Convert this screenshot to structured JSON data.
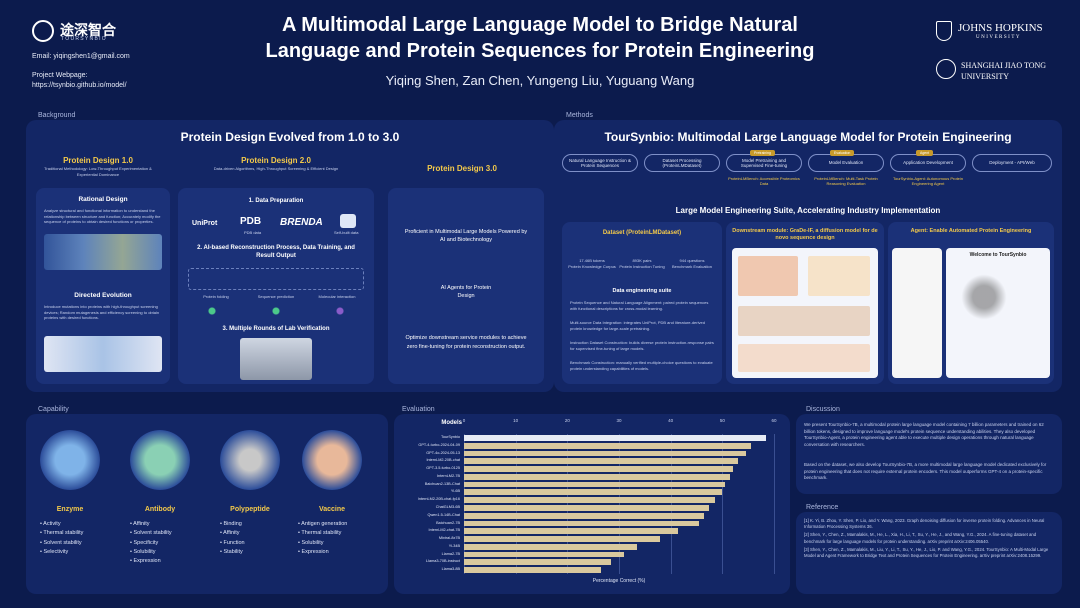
{
  "header": {
    "logo_text": "途深智合",
    "logo_sub": "TOURSYNBIO",
    "email": "Email: yiqingshen1@gmail.com",
    "webpage_label": "Project Webpage:",
    "webpage_url": "https://tsynbio.github.io/model/",
    "title_line1": "A Multimodal Large Language Model to Bridge Natural",
    "title_line2": "Language and Protein Sequences for Protein Engineering",
    "authors": "Yiqing Shen, Zan Chen, Yungeng Liu, Yuguang Wang",
    "jhu_line1": "JOHNS HOPKINS",
    "jhu_line2": "UNIVERSITY",
    "sjtu_line1": "SHANGHAI JIAO TONG",
    "sjtu_line2": "UNIVERSITY"
  },
  "background": {
    "section_label": "Background",
    "title": "Protein Design Evolved from 1.0 to 3.0",
    "pd1": {
      "title": "Protein Design 1.0",
      "subtitle": "Traditional Methodology: Low-Throughput Experimentation & Experiential Dominance",
      "rational_title": "Rational Design",
      "rational_text": "Analyze structural and functional information to understand the relationship between structure and function; Accurately modify the sequence of proteins to obtain desired functions or properties.",
      "directed_title": "Directed Evolution",
      "directed_text": "Introduce mutations into proteins with high-throughput screening devices; Random mutagenesis and efficiency screening to obtain proteins with desired functions."
    },
    "pd2": {
      "title": "Protein Design 2.0",
      "subtitle": "Data-driven Algorithms, High-Throughput Screening & Efficient Design",
      "step1": "1. Data Preparation",
      "db1": "UniProt",
      "db2": "PDB",
      "db3": "BRENDA",
      "db2_sub": "PDB data",
      "db4_sub": "Self-built data",
      "step2": "2. AI-based Reconstruction Process, Data Training, and Result Output",
      "out1": "Protein folding",
      "out2": "Sequence prediction",
      "out3": "Molecular interaction",
      "step3": "3. Multiple Rounds of Lab Verification"
    },
    "pd3": {
      "title": "Protein Design 3.0",
      "text1": "Proficient in Multimodal Large Models Powered by AI and Biotechnology",
      "text2": "AI Agents for Protein Design",
      "text3": "Optimize downstream service modules to achieve zero fine-tuning for protein reconstruction output."
    }
  },
  "methods": {
    "section_label": "Methods",
    "title": "TourSynbio: Multimodal Large Language Model for Protein Engineering",
    "pills": [
      "Natural Language Instruction & Protein Sequences",
      "Dataset Processing (ProteinLMDataset)",
      "Model Pretraining and Supervised Fine-tuning",
      "Model Evaluation",
      "Application Development",
      "Deployment - API/Web"
    ],
    "tags": [
      "Pretraining",
      "Evaluation",
      "Agent"
    ],
    "notes": [
      "ProteinLMBench: Accessible Proteomics Data",
      "ProteinLMBench: Multi-Task Protein Reasoning Evaluation",
      "TourSynbio-Agent: Autonomous Protein Engineering Agent"
    ],
    "suite_title": "Large Model Engineering Suite, Accelerating Industry Implementation",
    "dataset_title": "Dataset (ProteinLMDataset)",
    "dataset_stats": [
      "Protein Knowledge Corpus",
      "Protein Instruction Tuning",
      "Benchmark Evaluation"
    ],
    "dataset_values": [
      "17.46B tokens",
      "893K pairs",
      "944 questions"
    ],
    "suite_heading": "Data engineering suite",
    "suite_points": [
      "Protein Sequence and Natural Language Alignment: paired protein sequences with functional descriptions for cross-modal learning.",
      "Multi-source Data Integration: integrates UniProt, PDB and literature-derived protein knowledge for large-scale pretraining.",
      "Instruction Dataset Construction: builds diverse protein instruction-response pairs for supervised fine-tuning of large models.",
      "Benchmark Construction: manually verified multiple-choice questions to evaluate protein understanding capabilities of models."
    ],
    "downstream_title": "Downstream module: GraDe-IF, a diffusion model for de novo sequence design",
    "agent_title": "Agent: Enable Automated Protein Engineering",
    "agent_welcome": "Welcome to TourSynbio"
  },
  "capability": {
    "section_label": "Capability",
    "items": [
      {
        "title": "Enzyme",
        "points": [
          "Activity",
          "Thermal stability",
          "Solvent stability",
          "Selectivity"
        ]
      },
      {
        "title": "Antibody",
        "points": [
          "Affinity",
          "Solvent stability",
          "Specificity",
          "Solubility",
          "Expression"
        ]
      },
      {
        "title": "Polypeptide",
        "points": [
          "Binding",
          "Affinity",
          "Function",
          "Stability"
        ]
      },
      {
        "title": "Vaccine",
        "points": [
          "Antigen generation",
          "Thermal stability",
          "Solubility",
          "Expression"
        ]
      }
    ]
  },
  "evaluation": {
    "section_label": "Evaluation"
  },
  "chart_data": {
    "type": "bar",
    "orientation": "horizontal",
    "title": "Models",
    "xlabel": "Percentage Correct (%)",
    "ylabel": "",
    "xlim": [
      0,
      60
    ],
    "xticks": [
      0,
      10,
      20,
      30,
      40,
      50,
      60
    ],
    "grid": true,
    "categories": [
      "TourSynbio",
      "GPT-4-turbo-2024-04-09",
      "GPT-4o-2024-05-13",
      "InternLM2-20B-chat",
      "GPT-3.5-turbo-0125",
      "InternLM2-7B",
      "Baichuan2-13B-Chat",
      "Yi-6B",
      "InternLM2-20B-chat-fp16",
      "ChatGLM3-6B",
      "Qwen1.5-14B-Chat",
      "Baichuan2-7B",
      "InternLM2-chat-7B",
      "Mixtral-8x7B",
      "Yi-34B",
      "Llama2-7B",
      "Llama3-70B-instruct",
      "Llama3-8B"
    ],
    "values": [
      58.5,
      55.5,
      54.5,
      53.0,
      52.0,
      51.5,
      50.5,
      50.0,
      48.5,
      47.5,
      46.5,
      45.5,
      41.5,
      38.0,
      33.5,
      31.0,
      28.5,
      26.5
    ],
    "bar_colors": [
      "#e6ebf5",
      "#d9c89e"
    ]
  },
  "discussion": {
    "section_label": "Discussion",
    "p1": "We present TourSynbio-7B, a multimodal protein large language model containing 7 billion parameters and trained on 62 billion tokens, designed to improve language model's protein sequence understanding abilities. They also developed TourSynbio-Agent, a protein engineering agent able to execute multiple design operations through natural language conversation with researchers.",
    "p2": "Based on the dataset, we also develop TourSynbio-7B, a more multimodal large language model dedicated exclusively for protein engineering that does not require external protein encoders. This model outperforms GPT-4 on a protein-specific benchmark."
  },
  "reference": {
    "section_label": "Reference",
    "items": [
      "[1] K. Yi, B. Zhou, Y. Shen, P. Lio, and Y. Wang, 2023. Graph denoising diffusion for inverse protein folding. Advances in Neural Information Processing Systems 36.",
      "[2] Shen, Y., Chen, Z., Mamalakis, M., He, L., Xia, H., Li, T., Su, Y., He, J., and Wang, Y.G., 2024. A fine-tuning dataset and benchmark for large language models for protein understanding. arXiv preprint arXiv:2406.05540.",
      "[3] Shen, Y., Chen, Z., Mamalakis, M., Liu, Y., Li, T., Su, Y., He, J., Lio, P. and Wang, Y.G., 2024. TourSynbio: A Multi-Modal Large Model and Agent Framework to Bridge Text and Protein Sequences for Protein Engineering. arXiv preprint arXiv:2408.15299."
    ]
  },
  "colors": {
    "background": "#0c1b4d",
    "panel": "#132665",
    "accent": "#f3c94a"
  }
}
